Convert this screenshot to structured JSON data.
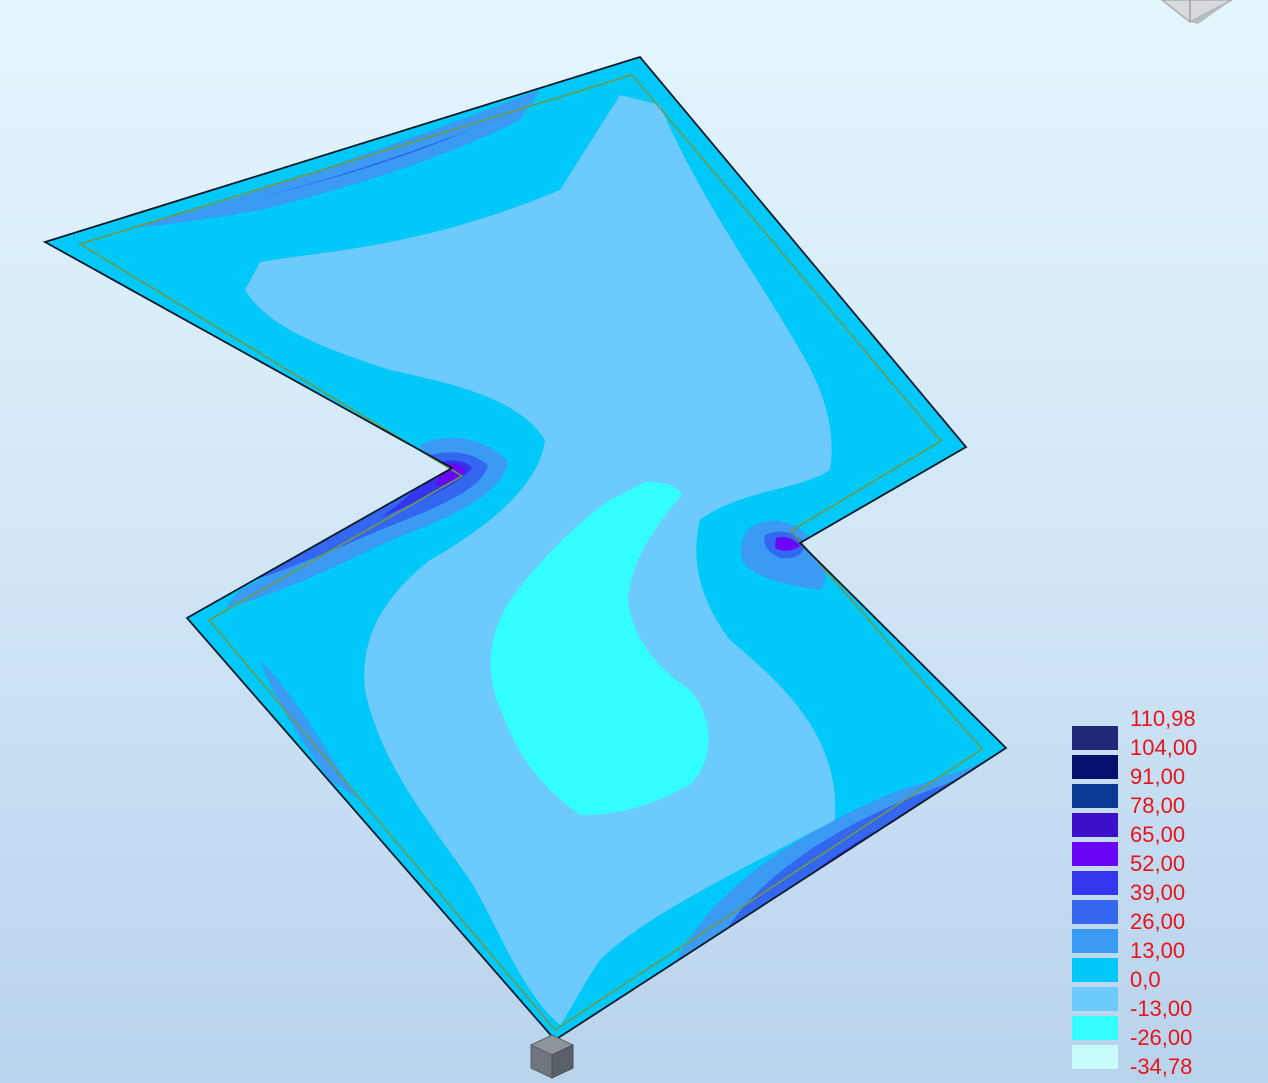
{
  "legend": {
    "labels": [
      "110,98",
      "104,00",
      "91,00",
      "78,00",
      "65,00",
      "52,00",
      "39,00",
      "26,00",
      "13,00",
      "0,0",
      "-13,00",
      "-26,00",
      "-34,78"
    ],
    "colors": [
      "#1e2a78",
      "#050f6e",
      "#0b3a96",
      "#3b10c8",
      "#6a05f5",
      "#3436ef",
      "#3467f0",
      "#3a9af4",
      "#00c8f8",
      "#6ccafc",
      "#33ffff",
      "#c8fcfc"
    ],
    "label_color": "#e8141b"
  },
  "plot": {
    "base_color": "#00c8f8",
    "edge_color": "#0b1a2a",
    "offset_line_color": "#6f9a4a"
  },
  "icons": {
    "view_cube": "view-cube-icon",
    "axis_cube": "axis-cube-icon"
  }
}
